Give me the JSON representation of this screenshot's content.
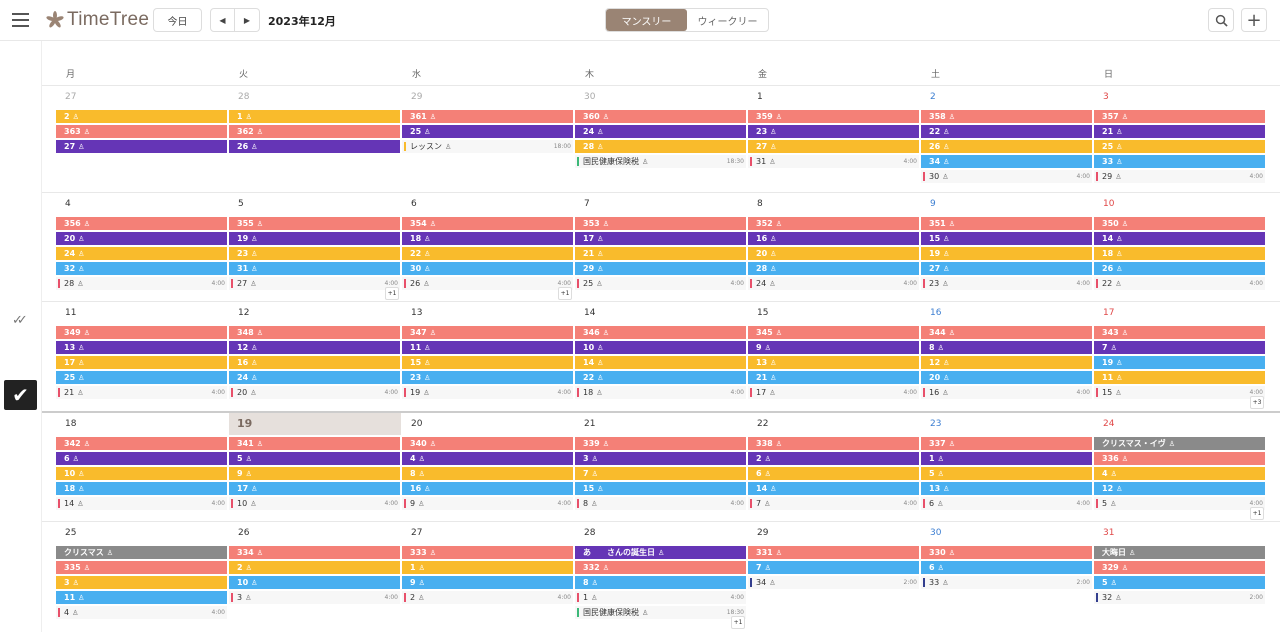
{
  "app": {
    "name": "TimeTree"
  },
  "toolbar": {
    "today": "今日",
    "prev": "◀",
    "next": "▶",
    "month": "2023年12月",
    "view_monthly": "マンスリー",
    "view_weekly": "ウィークリー",
    "search": "search-icon",
    "add": "+"
  },
  "weekdays": [
    "月",
    "火",
    "水",
    "木",
    "金",
    "土",
    "日"
  ],
  "colors": {
    "red": "#f48077",
    "purple": "#6535b6",
    "yellow": "#f9bb2c",
    "blue": "#48aff0",
    "gray": "#8a8a8a",
    "brand": "#9a8474"
  },
  "weeks": [
    {
      "days": [
        {
          "d": "27",
          "k": "gray",
          "ev": [
            [
              "2",
              "y"
            ],
            [
              "363",
              "r"
            ],
            [
              "27",
              "p"
            ]
          ],
          "it": []
        },
        {
          "d": "28",
          "k": "gray",
          "ev": [
            [
              "1",
              "y"
            ],
            [
              "362",
              "r"
            ],
            [
              "26",
              "p"
            ]
          ],
          "it": []
        },
        {
          "d": "29",
          "k": "gray",
          "ev": [
            [
              "361",
              "r"
            ],
            [
              "25",
              "p"
            ]
          ],
          "it": [
            [
              "レッスン",
              "18:00",
              "y"
            ]
          ]
        },
        {
          "d": "30",
          "k": "gray",
          "ev": [
            [
              "360",
              "r"
            ],
            [
              "24",
              "p"
            ],
            [
              "28",
              "y"
            ]
          ],
          "it": [
            [
              "国民健康保険税",
              "18:30",
              "gr"
            ]
          ]
        },
        {
          "d": "1",
          "k": "",
          "ev": [
            [
              "359",
              "r"
            ],
            [
              "23",
              "p"
            ],
            [
              "27",
              "y"
            ]
          ],
          "it": [
            [
              "31",
              "4:00",
              ""
            ]
          ]
        },
        {
          "d": "2",
          "k": "sat",
          "ev": [
            [
              "358",
              "r"
            ],
            [
              "22",
              "p"
            ],
            [
              "26",
              "y"
            ],
            [
              "34",
              "b"
            ]
          ],
          "it": [
            [
              "30",
              "4:00",
              ""
            ]
          ]
        },
        {
          "d": "3",
          "k": "sun",
          "ev": [
            [
              "357",
              "r"
            ],
            [
              "21",
              "p"
            ],
            [
              "25",
              "y"
            ],
            [
              "33",
              "b"
            ]
          ],
          "it": [
            [
              "29",
              "4:00",
              ""
            ]
          ]
        }
      ]
    },
    {
      "days": [
        {
          "d": "4",
          "k": "",
          "ev": [
            [
              "356",
              "r"
            ],
            [
              "20",
              "p"
            ],
            [
              "24",
              "y"
            ],
            [
              "32",
              "b"
            ]
          ],
          "it": [
            [
              "28",
              "4:00",
              ""
            ]
          ]
        },
        {
          "d": "5",
          "k": "",
          "ev": [
            [
              "355",
              "r"
            ],
            [
              "19",
              "p"
            ],
            [
              "23",
              "y"
            ],
            [
              "31",
              "b"
            ]
          ],
          "it": [
            [
              "27",
              "4:00",
              ""
            ]
          ],
          "more": "+1"
        },
        {
          "d": "6",
          "k": "",
          "ev": [
            [
              "354",
              "r"
            ],
            [
              "18",
              "p"
            ],
            [
              "22",
              "y"
            ],
            [
              "30",
              "b"
            ]
          ],
          "it": [
            [
              "26",
              "4:00",
              ""
            ]
          ],
          "more": "+1"
        },
        {
          "d": "7",
          "k": "",
          "ev": [
            [
              "353",
              "r"
            ],
            [
              "17",
              "p"
            ],
            [
              "21",
              "y"
            ],
            [
              "29",
              "b"
            ]
          ],
          "it": [
            [
              "25",
              "4:00",
              ""
            ]
          ]
        },
        {
          "d": "8",
          "k": "",
          "ev": [
            [
              "352",
              "r"
            ],
            [
              "16",
              "p"
            ],
            [
              "20",
              "y"
            ],
            [
              "28",
              "b"
            ]
          ],
          "it": [
            [
              "24",
              "4:00",
              ""
            ]
          ]
        },
        {
          "d": "9",
          "k": "sat",
          "ev": [
            [
              "351",
              "r"
            ],
            [
              "15",
              "p"
            ],
            [
              "19",
              "y"
            ],
            [
              "27",
              "b"
            ]
          ],
          "it": [
            [
              "23",
              "4:00",
              ""
            ]
          ]
        },
        {
          "d": "10",
          "k": "sun",
          "ev": [
            [
              "350",
              "r"
            ],
            [
              "14",
              "p"
            ],
            [
              "18",
              "y"
            ],
            [
              "26",
              "b"
            ]
          ],
          "it": [
            [
              "22",
              "4:00",
              ""
            ]
          ]
        }
      ]
    },
    {
      "days": [
        {
          "d": "11",
          "k": "",
          "ev": [
            [
              "349",
              "r"
            ],
            [
              "13",
              "p"
            ],
            [
              "17",
              "y"
            ],
            [
              "25",
              "b"
            ]
          ],
          "it": [
            [
              "21",
              "4:00",
              ""
            ]
          ]
        },
        {
          "d": "12",
          "k": "",
          "ev": [
            [
              "348",
              "r"
            ],
            [
              "12",
              "p"
            ],
            [
              "16",
              "y"
            ],
            [
              "24",
              "b"
            ]
          ],
          "it": [
            [
              "20",
              "4:00",
              ""
            ]
          ]
        },
        {
          "d": "13",
          "k": "",
          "ev": [
            [
              "347",
              "r"
            ],
            [
              "11",
              "p"
            ],
            [
              "15",
              "y"
            ],
            [
              "23",
              "b"
            ]
          ],
          "it": [
            [
              "19",
              "4:00",
              ""
            ]
          ]
        },
        {
          "d": "14",
          "k": "",
          "ev": [
            [
              "346",
              "r"
            ],
            [
              "10",
              "p"
            ],
            [
              "14",
              "y"
            ],
            [
              "22",
              "b"
            ]
          ],
          "it": [
            [
              "18",
              "4:00",
              ""
            ]
          ]
        },
        {
          "d": "15",
          "k": "",
          "ev": [
            [
              "345",
              "r"
            ],
            [
              "9",
              "p"
            ],
            [
              "13",
              "y"
            ],
            [
              "21",
              "b"
            ]
          ],
          "it": [
            [
              "17",
              "4:00",
              ""
            ]
          ]
        },
        {
          "d": "16",
          "k": "sat",
          "ev": [
            [
              "344",
              "r"
            ],
            [
              "8",
              "p"
            ],
            [
              "12",
              "y"
            ],
            [
              "20",
              "b"
            ]
          ],
          "it": [
            [
              "16",
              "4:00",
              ""
            ]
          ]
        },
        {
          "d": "17",
          "k": "sun",
          "ev": [
            [
              "343",
              "r"
            ],
            [
              "7",
              "p"
            ],
            [
              "19",
              "b"
            ],
            [
              "11",
              "y"
            ]
          ],
          "it": [
            [
              "15",
              "4:00",
              ""
            ]
          ],
          "more": "+3"
        }
      ]
    },
    {
      "days": [
        {
          "d": "18",
          "k": "",
          "ev": [
            [
              "342",
              "r"
            ],
            [
              "6",
              "p"
            ],
            [
              "10",
              "y"
            ],
            [
              "18",
              "b"
            ]
          ],
          "it": [
            [
              "14",
              "4:00",
              ""
            ]
          ]
        },
        {
          "d": "19",
          "k": "today",
          "ev": [
            [
              "341",
              "r"
            ],
            [
              "5",
              "p"
            ],
            [
              "9",
              "y"
            ],
            [
              "17",
              "b"
            ]
          ],
          "it": [
            [
              "10",
              "4:00",
              ""
            ]
          ]
        },
        {
          "d": "20",
          "k": "",
          "ev": [
            [
              "340",
              "r"
            ],
            [
              "4",
              "p"
            ],
            [
              "8",
              "y"
            ],
            [
              "16",
              "b"
            ]
          ],
          "it": [
            [
              "9",
              "4:00",
              ""
            ]
          ]
        },
        {
          "d": "21",
          "k": "",
          "ev": [
            [
              "339",
              "r"
            ],
            [
              "3",
              "p"
            ],
            [
              "7",
              "y"
            ],
            [
              "15",
              "b"
            ]
          ],
          "it": [
            [
              "8",
              "4:00",
              ""
            ]
          ]
        },
        {
          "d": "22",
          "k": "",
          "ev": [
            [
              "338",
              "r"
            ],
            [
              "2",
              "p"
            ],
            [
              "6",
              "y"
            ],
            [
              "14",
              "b"
            ]
          ],
          "it": [
            [
              "7",
              "4:00",
              ""
            ]
          ]
        },
        {
          "d": "23",
          "k": "sat",
          "ev": [
            [
              "337",
              "r"
            ],
            [
              "1",
              "p"
            ],
            [
              "5",
              "y"
            ],
            [
              "13",
              "b"
            ]
          ],
          "it": [
            [
              "6",
              "4:00",
              ""
            ]
          ]
        },
        {
          "d": "24",
          "k": "sun",
          "ev": [
            [
              "クリスマス・イヴ",
              "g"
            ],
            [
              "336",
              "r"
            ],
            [
              "4",
              "y"
            ],
            [
              "12",
              "b"
            ]
          ],
          "it": [
            [
              "5",
              "4:00",
              ""
            ]
          ],
          "more": "+1"
        }
      ]
    },
    {
      "days": [
        {
          "d": "25",
          "k": "",
          "ev": [
            [
              "クリスマス",
              "g"
            ],
            [
              "335",
              "r"
            ],
            [
              "3",
              "y"
            ],
            [
              "11",
              "b"
            ]
          ],
          "it": [
            [
              "4",
              "4:00",
              ""
            ]
          ]
        },
        {
          "d": "26",
          "k": "",
          "ev": [
            [
              "334",
              "r"
            ],
            [
              "2",
              "y"
            ],
            [
              "10",
              "b"
            ]
          ],
          "it": [
            [
              "3",
              "4:00",
              ""
            ]
          ]
        },
        {
          "d": "27",
          "k": "",
          "ev": [
            [
              "333",
              "r"
            ],
            [
              "1",
              "y"
            ],
            [
              "9",
              "b"
            ]
          ],
          "it": [
            [
              "2",
              "4:00",
              ""
            ]
          ]
        },
        {
          "d": "28",
          "k": "",
          "ev": [
            [
              "あ　　さんの誕生日",
              "p"
            ],
            [
              "332",
              "r"
            ],
            [
              "8",
              "b"
            ]
          ],
          "it": [
            [
              "1",
              "4:00",
              ""
            ],
            [
              "国民健康保険税",
              "18:30",
              "gr"
            ]
          ],
          "more": "+1"
        },
        {
          "d": "29",
          "k": "",
          "ev": [
            [
              "331",
              "r"
            ],
            [
              "7",
              "b"
            ]
          ],
          "it": [
            [
              "34",
              "2:00",
              "n"
            ]
          ]
        },
        {
          "d": "30",
          "k": "sat",
          "ev": [
            [
              "330",
              "r"
            ],
            [
              "6",
              "b"
            ]
          ],
          "it": [
            [
              "33",
              "2:00",
              "n"
            ]
          ]
        },
        {
          "d": "31",
          "k": "sun",
          "ev": [
            [
              "大晦日",
              "g"
            ],
            [
              "329",
              "r"
            ],
            [
              "5",
              "b"
            ]
          ],
          "it": [
            [
              "32",
              "2:00",
              "n"
            ]
          ]
        }
      ]
    }
  ]
}
